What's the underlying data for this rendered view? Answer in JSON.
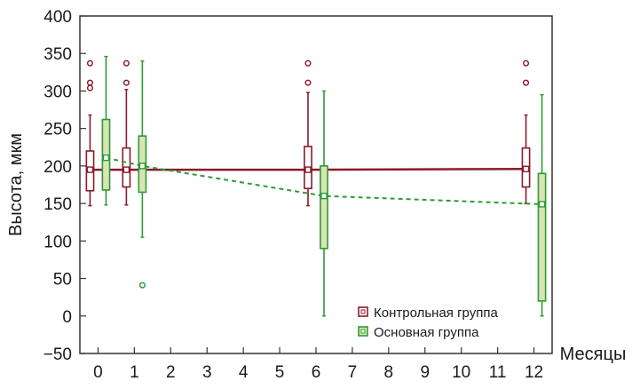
{
  "chart_data": {
    "type": "box",
    "xlabel": "Месяцы",
    "ylabel": "Высота, мкм",
    "xlim": [
      -0.5,
      12.5
    ],
    "ylim": [
      -50,
      400
    ],
    "x_ticks": [
      0,
      1,
      2,
      3,
      4,
      5,
      6,
      7,
      8,
      9,
      10,
      11,
      12
    ],
    "y_ticks": [
      -50,
      0,
      50,
      100,
      150,
      200,
      250,
      300,
      350,
      400
    ],
    "legend_position": "bottom-right",
    "series": [
      {
        "name": "Контрольная группа",
        "color": "#8b1a2b",
        "line_style": "solid",
        "boxes": [
          {
            "x": 0,
            "min": 147,
            "q1": 167,
            "median": 195,
            "q3": 220,
            "max": 268,
            "outliers": [
              337,
              311,
              304
            ]
          },
          {
            "x": 1,
            "min": 148,
            "q1": 172,
            "median": 195,
            "q3": 224,
            "max": 302,
            "outliers": [
              337,
              311
            ]
          },
          {
            "x": 6,
            "min": 147,
            "q1": 170,
            "median": 195,
            "q3": 226,
            "max": 298,
            "outliers": [
              337,
              311
            ]
          },
          {
            "x": 12,
            "min": 150,
            "q1": 172,
            "median": 196,
            "q3": 224,
            "max": 268,
            "outliers": [
              337,
              311
            ]
          }
        ],
        "mean_line": [
          [
            0,
            195
          ],
          [
            1,
            195
          ],
          [
            6,
            195
          ],
          [
            12,
            196
          ]
        ]
      },
      {
        "name": "Основная группа",
        "color": "#2e9a36",
        "box_fill": "#d9e4b6",
        "line_style": "dashed",
        "boxes": [
          {
            "x": 0,
            "min": 148,
            "q1": 168,
            "median": 211,
            "q3": 262,
            "max": 346,
            "outliers": []
          },
          {
            "x": 1,
            "min": 105,
            "q1": 165,
            "median": 200,
            "q3": 240,
            "max": 340,
            "outliers": [
              41
            ]
          },
          {
            "x": 6,
            "min": 0,
            "q1": 90,
            "median": 160,
            "q3": 200,
            "max": 300,
            "outliers": []
          },
          {
            "x": 12,
            "min": 0,
            "q1": 20,
            "median": 149,
            "q3": 190,
            "max": 295,
            "outliers": []
          }
        ],
        "mean_line": [
          [
            0,
            211
          ],
          [
            1,
            200
          ],
          [
            6,
            160
          ],
          [
            12,
            149
          ]
        ]
      }
    ]
  }
}
